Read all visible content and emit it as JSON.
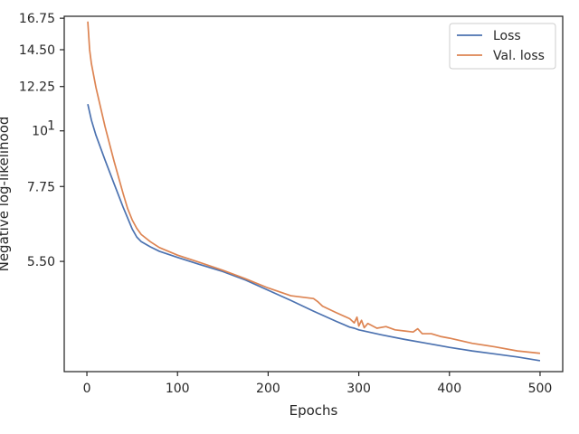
{
  "chart_data": {
    "type": "line",
    "xlabel": "Epochs",
    "ylabel": "Negative log-likelihood",
    "xlim": [
      -25,
      525
    ],
    "ylim": [
      3.32,
      16.9
    ],
    "yscale": "log",
    "grid": false,
    "legend_position": "top-right",
    "x_ticks": [
      0,
      100,
      200,
      300,
      400,
      500
    ],
    "x_tick_labels": [
      "0",
      "100",
      "200",
      "300",
      "400",
      "500"
    ],
    "y_ticks": [
      5.5,
      7.75,
      10,
      12.25,
      14.5,
      16.75
    ],
    "y_tick_labels": [
      "5.50",
      "7.75",
      "10",
      "12.25",
      "14.50",
      "16.75"
    ],
    "y_tick_label_10_superscript": "1",
    "series": [
      {
        "name": "Loss",
        "color": "#4c72b0",
        "x": [
          1,
          5,
          10,
          20,
          30,
          40,
          50,
          55,
          60,
          70,
          80,
          100,
          125,
          150,
          175,
          200,
          225,
          250,
          275,
          290,
          295,
          300,
          325,
          350,
          375,
          400,
          425,
          450,
          475,
          500
        ],
        "y": [
          11.3,
          10.5,
          9.8,
          8.75,
          7.85,
          7.05,
          6.38,
          6.15,
          6.02,
          5.88,
          5.76,
          5.6,
          5.42,
          5.25,
          5.05,
          4.82,
          4.6,
          4.38,
          4.18,
          4.07,
          4.05,
          4.02,
          3.93,
          3.85,
          3.78,
          3.71,
          3.65,
          3.6,
          3.55,
          3.49
        ]
      },
      {
        "name": "Val. loss",
        "color": "#dd8452",
        "x": [
          1,
          3,
          5,
          10,
          20,
          30,
          40,
          45,
          50,
          55,
          60,
          70,
          80,
          100,
          125,
          150,
          175,
          200,
          225,
          250,
          255,
          260,
          275,
          290,
          295,
          298,
          300,
          303,
          306,
          310,
          320,
          330,
          340,
          350,
          360,
          365,
          370,
          380,
          390,
          400,
          425,
          450,
          475,
          500
        ],
        "y": [
          16.5,
          14.5,
          13.6,
          12.2,
          10.2,
          8.7,
          7.5,
          7.0,
          6.65,
          6.4,
          6.22,
          6.02,
          5.86,
          5.66,
          5.47,
          5.28,
          5.08,
          4.87,
          4.7,
          4.64,
          4.57,
          4.48,
          4.35,
          4.23,
          4.15,
          4.26,
          4.09,
          4.2,
          4.06,
          4.14,
          4.05,
          4.08,
          4.02,
          4.0,
          3.98,
          4.04,
          3.95,
          3.95,
          3.9,
          3.87,
          3.78,
          3.72,
          3.65,
          3.61
        ]
      }
    ]
  }
}
